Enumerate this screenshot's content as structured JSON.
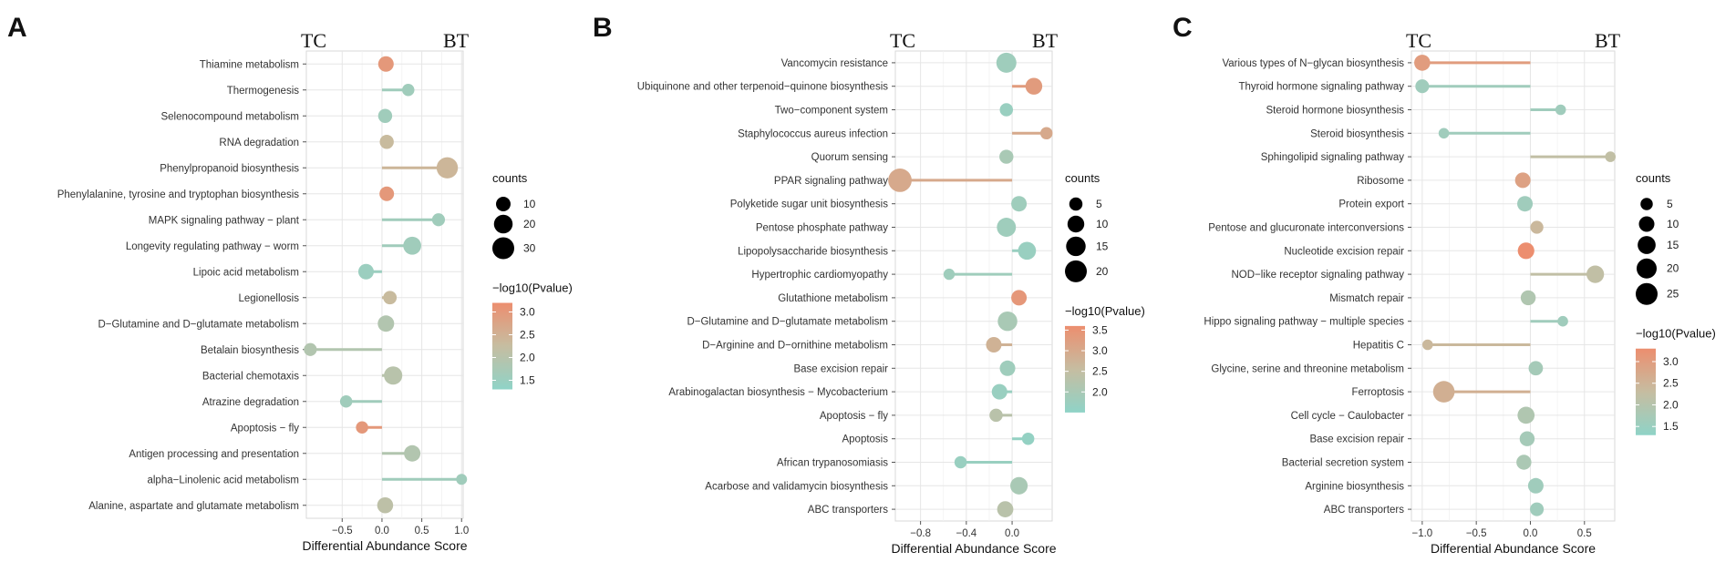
{
  "figure": {
    "color_scale": {
      "low": "#8fd3c7",
      "mid": "#c6bda1",
      "high": "#ec8e6f"
    }
  },
  "chart_data": [
    {
      "panel": "A",
      "type": "lollipop",
      "side_labels": {
        "left": "TC",
        "right": "BT"
      },
      "xlabel": "Differential Abundance Score",
      "xlim": [
        -0.95,
        1.02
      ],
      "xticks": [
        -0.5,
        0.0,
        0.5,
        1.0
      ],
      "xtick_labels": [
        "−0.5",
        "0.0",
        "0.5",
        "1.0"
      ],
      "categories": [
        "Thiamine metabolism",
        "Thermogenesis",
        "Selenocompound metabolism",
        "RNA degradation",
        "Phenylpropanoid biosynthesis",
        "Phenylalanine, tyrosine and tryptophan biosynthesis",
        "MAPK signaling pathway − plant",
        "Longevity regulating pathway − worm",
        "Lipoic acid metabolism",
        "Legionellosis",
        "D−Glutamine and D−glutamate metabolism",
        "Betalain biosynthesis",
        "Bacterial chemotaxis",
        "Atrazine degradation",
        "Apoptosis − fly",
        "Antigen processing and presentation",
        "alpha−Linolenic acid metabolism",
        "Alanine, aspartate and glutamate metabolism"
      ],
      "values": [
        0.05,
        0.33,
        0.04,
        0.06,
        0.82,
        0.06,
        0.71,
        0.38,
        -0.2,
        0.1,
        0.05,
        -0.9,
        0.14,
        -0.45,
        -0.25,
        0.38,
        1.0,
        0.04
      ],
      "counts": [
        12,
        6,
        9,
        9,
        28,
        10,
        7,
        18,
        12,
        8,
        14,
        7,
        19,
        6,
        6,
        14,
        4,
        13
      ],
      "neg_log10_p": [
        3.0,
        1.6,
        1.6,
        2.3,
        2.4,
        3.0,
        1.6,
        1.6,
        1.5,
        2.3,
        1.9,
        1.9,
        2.0,
        1.6,
        3.0,
        1.9,
        1.6,
        2.1
      ],
      "legend": {
        "counts_title": "counts",
        "counts_breaks": [
          10,
          20,
          30
        ],
        "color_title": "−log10(Pvalue)",
        "color_range": [
          1.3,
          3.2
        ],
        "color_breaks": [
          1.5,
          2.0,
          2.5,
          3.0
        ],
        "color_labels": [
          "1.5",
          "2.0",
          "2.5",
          "3.0"
        ]
      }
    },
    {
      "panel": "B",
      "type": "lollipop",
      "side_labels": {
        "left": "TC",
        "right": "BT"
      },
      "xlabel": "Differential Abundance Score",
      "xlim": [
        -1.02,
        0.35
      ],
      "xticks": [
        -0.8,
        -0.4,
        0.0
      ],
      "xtick_labels": [
        "−0.8",
        "−0.4",
        "0.0"
      ],
      "categories": [
        "Vancomycin resistance",
        "Ubiquinone and other terpenoid−quinone biosynthesis",
        "Two−component system",
        "Staphylococcus aureus infection",
        "Quorum sensing",
        "PPAR signaling pathway",
        "Polyketide sugar unit biosynthesis",
        "Pentose phosphate pathway",
        "Lipopolysaccharide biosynthesis",
        "Hypertrophic cardiomyopathy",
        "Glutathione metabolism",
        "D−Glutamine and D−glutamate metabolism",
        "D−Arginine and D−ornithine metabolism",
        "Base excision repair",
        "Arabinogalactan biosynthesis − Mycobacterium",
        "Apoptosis − fly",
        "Apoptosis",
        "African trypanosomiasis",
        "Acarbose and validamycin biosynthesis",
        "ABC transporters"
      ],
      "values": [
        -0.05,
        0.19,
        -0.05,
        0.3,
        -0.05,
        -0.98,
        0.06,
        -0.05,
        0.13,
        -0.55,
        0.06,
        -0.04,
        -0.16,
        -0.04,
        -0.11,
        -0.14,
        0.14,
        -0.45,
        0.06,
        -0.06
      ],
      "counts": [
        16,
        10,
        5,
        4,
        6,
        24,
        8,
        14,
        12,
        3,
        8,
        15,
        8,
        8,
        8,
        5,
        4,
        4,
        11,
        9
      ],
      "neg_log10_p": [
        1.8,
        3.3,
        1.7,
        3.0,
        2.0,
        3.0,
        1.8,
        1.8,
        1.7,
        1.8,
        3.4,
        2.0,
        2.8,
        1.8,
        1.7,
        2.3,
        1.6,
        1.7,
        2.0,
        2.3
      ],
      "legend": {
        "counts_title": "counts",
        "counts_breaks": [
          5,
          10,
          15,
          20
        ],
        "color_title": "−log10(Pvalue)",
        "color_range": [
          1.5,
          3.6
        ],
        "color_breaks": [
          2.0,
          2.5,
          3.0,
          3.5
        ],
        "color_labels": [
          "2.0",
          "2.5",
          "3.0",
          "3.5"
        ]
      }
    },
    {
      "panel": "C",
      "type": "lollipop",
      "side_labels": {
        "left": "TC",
        "right": "BT"
      },
      "xlabel": "Differential Abundance Score",
      "xlim": [
        -1.1,
        0.78
      ],
      "xticks": [
        -1.0,
        -0.5,
        0.0,
        0.5
      ],
      "xtick_labels": [
        "−1.0",
        "−0.5",
        "0.0",
        "0.5"
      ],
      "categories": [
        "Various types of N−glycan biosynthesis",
        "Thyroid hormone signaling pathway",
        "Steroid hormone biosynthesis",
        "Steroid biosynthesis",
        "Sphingolipid signaling pathway",
        "Ribosome",
        "Protein export",
        "Pentose and glucuronate interconversions",
        "Nucleotide excision repair",
        "NOD−like receptor signaling pathway",
        "Mismatch repair",
        "Hippo signaling pathway − multiple species",
        "Hepatitis C",
        "Glycine, serine and threonine metabolism",
        "Ferroptosis",
        "Cell cycle − Caulobacter",
        "Base excision repair",
        "Bacterial secretion system",
        "Arginine biosynthesis",
        "ABC transporters"
      ],
      "values": [
        -1.0,
        -1.0,
        0.28,
        -0.8,
        0.74,
        -0.07,
        -0.05,
        0.06,
        -0.04,
        0.6,
        -0.02,
        0.3,
        -0.95,
        0.05,
        -0.8,
        -0.04,
        -0.03,
        -0.06,
        0.05,
        0.06
      ],
      "counts": [
        11,
        7,
        3,
        3,
        3,
        10,
        10,
        6,
        12,
        14,
        9,
        3,
        3,
        8,
        24,
        13,
        9,
        9,
        10,
        7
      ],
      "neg_log10_p": [
        3.0,
        1.6,
        1.6,
        1.6,
        2.2,
        2.9,
        1.6,
        2.4,
        3.3,
        2.2,
        1.9,
        1.6,
        2.4,
        1.7,
        2.6,
        1.9,
        1.7,
        1.8,
        1.6,
        1.6
      ],
      "legend": {
        "counts_title": "counts",
        "counts_breaks": [
          5,
          10,
          15,
          20,
          25
        ],
        "color_title": "−log10(Pvalue)",
        "color_range": [
          1.3,
          3.3
        ],
        "color_breaks": [
          1.5,
          2.0,
          2.5,
          3.0
        ],
        "color_labels": [
          "1.5",
          "2.0",
          "2.5",
          "3.0"
        ]
      }
    }
  ]
}
